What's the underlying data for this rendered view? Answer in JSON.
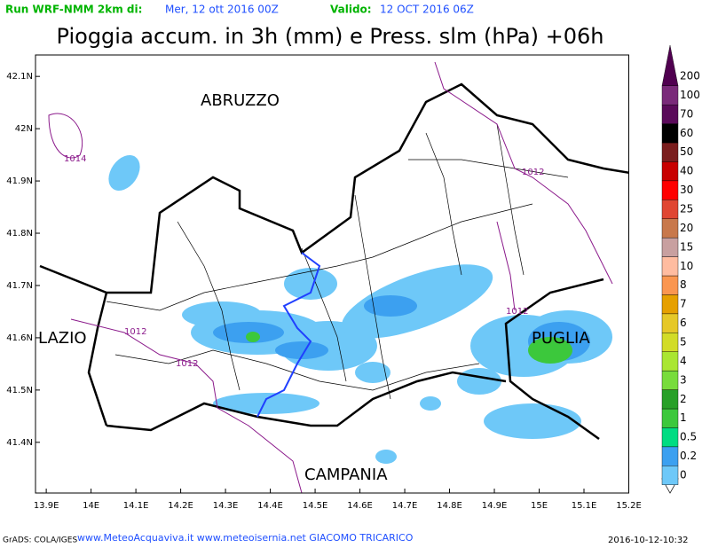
{
  "header": {
    "run_label": "Run WRF-NMM 2km di:",
    "run_date": "Mer, 12 ott 2016 00Z",
    "valid_label": "Valido:",
    "valid_date": "12 OCT 2016 06Z",
    "title": "Pioggia accum. in 3h (mm) e Press. slm (hPa) +06h"
  },
  "map": {
    "lon_range": [
      13.876,
      15.2
    ],
    "lat_range": [
      41.303,
      42.141
    ],
    "lon_ticks": [
      {
        "value": 13.9,
        "label": "13.9E"
      },
      {
        "value": 14,
        "label": "14E"
      },
      {
        "value": 14.1,
        "label": "14.1E"
      },
      {
        "value": 14.2,
        "label": "14.2E"
      },
      {
        "value": 14.3,
        "label": "14.3E"
      },
      {
        "value": 14.4,
        "label": "14.4E"
      },
      {
        "value": 14.5,
        "label": "14.5E"
      },
      {
        "value": 14.6,
        "label": "14.6E"
      },
      {
        "value": 14.7,
        "label": "14.7E"
      },
      {
        "value": 14.8,
        "label": "14.8E"
      },
      {
        "value": 14.9,
        "label": "14.9E"
      },
      {
        "value": 15,
        "label": "15E"
      },
      {
        "value": 15.1,
        "label": "15.1E"
      },
      {
        "value": 15.2,
        "label": "15.2E"
      }
    ],
    "lat_ticks": [
      {
        "value": 42.1,
        "label": "42.1N"
      },
      {
        "value": 42,
        "label": "42N"
      },
      {
        "value": 41.9,
        "label": "41.9N"
      },
      {
        "value": 41.8,
        "label": "41.8N"
      },
      {
        "value": 41.7,
        "label": "41.7N"
      },
      {
        "value": 41.6,
        "label": "41.6N"
      },
      {
        "value": 41.5,
        "label": "41.5N"
      },
      {
        "value": 41.4,
        "label": "41.4N"
      }
    ],
    "regions": [
      "ABRUZZO",
      "LAZIO",
      "PUGLIA",
      "CAMPANIA"
    ],
    "isobars": [
      "1014",
      "1012",
      "1012",
      "1012",
      "1012"
    ]
  },
  "colorbar": {
    "levels": [
      0,
      0.2,
      0.5,
      1,
      2,
      3,
      4,
      5,
      6,
      7,
      8,
      10,
      15,
      20,
      25,
      30,
      40,
      50,
      60,
      70,
      100,
      200
    ],
    "colors": [
      "#6ec8f8",
      "#3ca0f0",
      "#00dc82",
      "#3cc83c",
      "#28a028",
      "#78dc3c",
      "#aae632",
      "#d2dc28",
      "#e6c828",
      "#e6a000",
      "#fa9650",
      "#ffbca0",
      "#c8a0a0",
      "#c8784b",
      "#e04632",
      "#ff0000",
      "#c80000",
      "#7a1e1e",
      "#000000",
      "#5a0a5a",
      "#7a2a7a",
      "#500050"
    ]
  },
  "footer": {
    "left": "GrADS: COLA/IGES",
    "center": "www.MeteoAcquaviva.it www.meteoisernia.net GIACOMO TRICARICO",
    "right": "2016-10-12-10:32"
  }
}
